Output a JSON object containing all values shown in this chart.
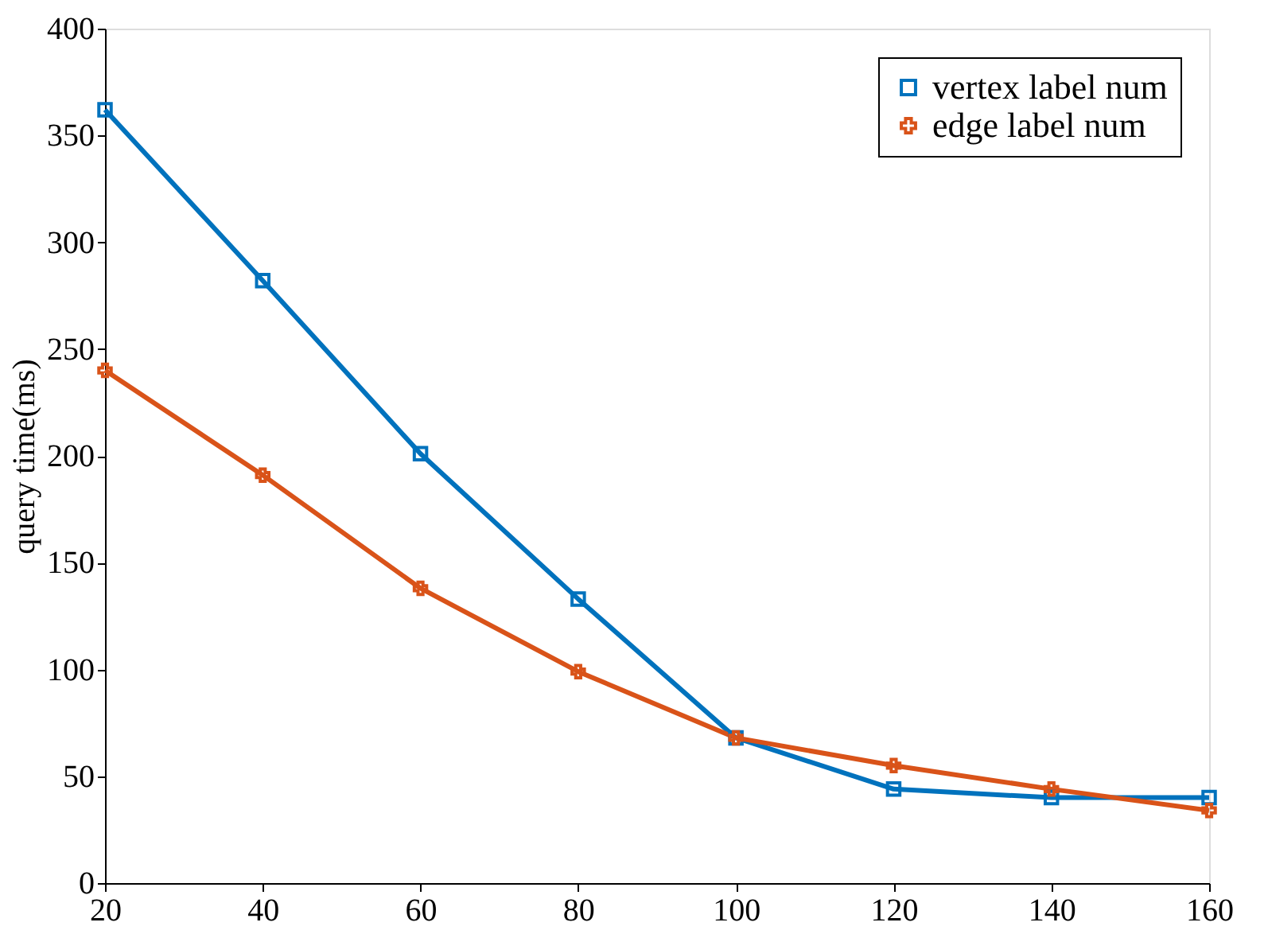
{
  "chart_data": {
    "type": "line",
    "xlabel": null,
    "ylabel": "query time(ms)",
    "x": [
      20,
      40,
      60,
      80,
      100,
      120,
      140,
      160
    ],
    "series": [
      {
        "name": "vertex label num",
        "color": "#0072bd",
        "marker": "square",
        "values": [
          362,
          282,
          201,
          133,
          68,
          44,
          40,
          40
        ]
      },
      {
        "name": "edge label num",
        "color": "#d95319",
        "marker": "cross",
        "values": [
          240,
          191,
          138,
          99,
          68,
          55,
          44,
          34
        ]
      }
    ],
    "xlim": [
      20,
      160
    ],
    "xticks": [
      20,
      40,
      60,
      80,
      100,
      120,
      140,
      160
    ],
    "ylim": [
      0,
      400
    ],
    "yticks": [
      0,
      50,
      100,
      150,
      200,
      250,
      300,
      350,
      400
    ],
    "legend": "top right"
  }
}
